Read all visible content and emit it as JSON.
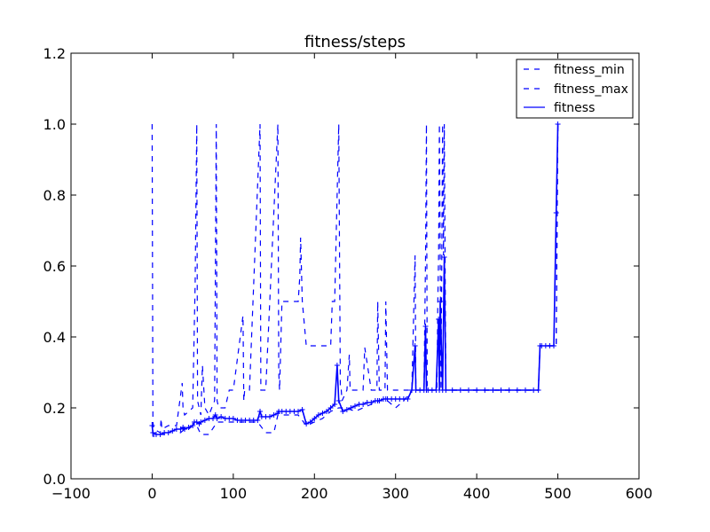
{
  "chart_data": {
    "type": "line",
    "title": "fitness/steps",
    "xlabel": "",
    "ylabel": "",
    "xlim": [
      -100,
      600
    ],
    "ylim": [
      0.0,
      1.2
    ],
    "xticks": [
      -100,
      0,
      100,
      200,
      300,
      400,
      500,
      600
    ],
    "xtick_labels": [
      "−100",
      "0",
      "100",
      "200",
      "300",
      "400",
      "500",
      "600"
    ],
    "yticks": [
      0.0,
      0.2,
      0.4,
      0.6,
      0.8,
      1.0,
      1.2
    ],
    "ytick_labels": [
      "0.0",
      "0.2",
      "0.4",
      "0.6",
      "0.8",
      "1.0",
      "1.2"
    ],
    "grid": false,
    "legend_position": "top-right",
    "color": "#0000ff",
    "series": [
      {
        "name": "fitness_min",
        "style": "dashed",
        "x": [
          0,
          1,
          5,
          10,
          15,
          20,
          25,
          30,
          35,
          40,
          45,
          50,
          55,
          60,
          65,
          70,
          80,
          90,
          100,
          110,
          120,
          130,
          140,
          150,
          155,
          160,
          170,
          180,
          190,
          200,
          210,
          220,
          230,
          240,
          250,
          260,
          270,
          280,
          290,
          300,
          310,
          320,
          330,
          340,
          350,
          355,
          360,
          380,
          400,
          420,
          440,
          460,
          476,
          478,
          490,
          498,
          500
        ],
        "y": [
          0.16,
          0.12,
          0.12,
          0.125,
          0.125,
          0.13,
          0.135,
          0.135,
          0.13,
          0.14,
          0.14,
          0.15,
          0.15,
          0.125,
          0.125,
          0.125,
          0.16,
          0.16,
          0.16,
          0.16,
          0.16,
          0.16,
          0.13,
          0.13,
          0.18,
          0.18,
          0.18,
          0.18,
          0.15,
          0.16,
          0.17,
          0.19,
          0.2,
          0.2,
          0.19,
          0.2,
          0.21,
          0.22,
          0.22,
          0.2,
          0.22,
          0.25,
          0.25,
          0.25,
          0.25,
          0.25,
          0.25,
          0.25,
          0.25,
          0.25,
          0.25,
          0.25,
          0.25,
          0.375,
          0.375,
          0.375,
          1.0
        ]
      },
      {
        "name": "fitness_max",
        "style": "dashed",
        "x": [
          0,
          1,
          2,
          10,
          11,
          12,
          20,
          30,
          37,
          38,
          40,
          50,
          53,
          55,
          56,
          60,
          62,
          65,
          70,
          77,
          79,
          80,
          82,
          90,
          95,
          100,
          112,
          113,
          114,
          120,
          133,
          134,
          135,
          140,
          155,
          156,
          157,
          160,
          170,
          180,
          182,
          183,
          185,
          190,
          191,
          192,
          195,
          220,
          222,
          225,
          230,
          232,
          233,
          234,
          240,
          243,
          244,
          250,
          260,
          262,
          270,
          277,
          278,
          280,
          287,
          288,
          290,
          300,
          310,
          320,
          324,
          325,
          326,
          335,
          337,
          338,
          339,
          345,
          351,
          352,
          353,
          354,
          356,
          358,
          359,
          360,
          362,
          380,
          400,
          420,
          440,
          460,
          476,
          478,
          490,
          498,
          500
        ],
        "y": [
          1.0,
          0.16,
          0.14,
          0.13,
          0.17,
          0.14,
          0.15,
          0.15,
          0.27,
          0.2,
          0.18,
          0.2,
          0.55,
          1.0,
          0.22,
          0.18,
          0.32,
          0.2,
          0.18,
          0.22,
          1.0,
          0.22,
          0.2,
          0.2,
          0.25,
          0.25,
          0.46,
          0.22,
          0.25,
          0.25,
          1.0,
          0.25,
          0.25,
          0.25,
          1.0,
          0.3,
          0.25,
          0.5,
          0.5,
          0.5,
          0.57,
          0.68,
          0.5,
          0.375,
          0.375,
          0.375,
          0.375,
          0.375,
          0.5,
          0.5,
          1.0,
          0.25,
          0.25,
          0.22,
          0.25,
          0.35,
          0.25,
          0.25,
          0.25,
          0.37,
          0.25,
          0.25,
          0.5,
          0.25,
          0.25,
          0.5,
          0.25,
          0.25,
          0.25,
          0.25,
          0.63,
          0.25,
          0.25,
          0.25,
          0.625,
          1.0,
          0.25,
          0.25,
          0.25,
          0.5,
          0.63,
          1.0,
          0.25,
          1.0,
          0.63,
          1.0,
          0.25,
          0.25,
          0.25,
          0.25,
          0.25,
          0.25,
          0.25,
          0.375,
          0.375,
          0.375,
          1.0
        ]
      },
      {
        "name": "fitness",
        "style": "solid",
        "marker": "+",
        "x": [
          0,
          1,
          5,
          10,
          15,
          20,
          25,
          30,
          35,
          38,
          40,
          45,
          50,
          52,
          55,
          58,
          60,
          65,
          70,
          75,
          78,
          80,
          85,
          90,
          95,
          100,
          105,
          110,
          115,
          120,
          125,
          130,
          133,
          135,
          140,
          145,
          150,
          155,
          156,
          160,
          165,
          170,
          175,
          180,
          185,
          190,
          195,
          200,
          205,
          210,
          215,
          220,
          225,
          228,
          230,
          235,
          240,
          245,
          250,
          255,
          260,
          265,
          270,
          275,
          278,
          280,
          285,
          288,
          290,
          295,
          300,
          305,
          310,
          315,
          320,
          324,
          325,
          330,
          335,
          337,
          338,
          340,
          345,
          350,
          353,
          354,
          355,
          358,
          360,
          362,
          370,
          380,
          390,
          400,
          410,
          420,
          430,
          440,
          450,
          460,
          470,
          476,
          478,
          480,
          485,
          490,
          495,
          498,
          500
        ],
        "y": [
          0.15,
          0.13,
          0.125,
          0.125,
          0.13,
          0.13,
          0.135,
          0.14,
          0.14,
          0.145,
          0.14,
          0.145,
          0.15,
          0.16,
          0.16,
          0.155,
          0.16,
          0.165,
          0.17,
          0.17,
          0.18,
          0.17,
          0.175,
          0.17,
          0.17,
          0.17,
          0.165,
          0.165,
          0.165,
          0.165,
          0.165,
          0.165,
          0.19,
          0.175,
          0.175,
          0.175,
          0.18,
          0.185,
          0.19,
          0.19,
          0.19,
          0.19,
          0.19,
          0.19,
          0.195,
          0.155,
          0.16,
          0.17,
          0.18,
          0.185,
          0.19,
          0.2,
          0.21,
          0.32,
          0.22,
          0.19,
          0.195,
          0.2,
          0.205,
          0.21,
          0.21,
          0.215,
          0.215,
          0.22,
          0.22,
          0.22,
          0.225,
          0.225,
          0.225,
          0.225,
          0.225,
          0.225,
          0.225,
          0.225,
          0.25,
          0.375,
          0.25,
          0.25,
          0.25,
          0.43,
          0.25,
          0.25,
          0.25,
          0.25,
          0.45,
          0.25,
          0.5,
          0.25,
          0.625,
          0.25,
          0.25,
          0.25,
          0.25,
          0.25,
          0.25,
          0.25,
          0.25,
          0.25,
          0.25,
          0.25,
          0.25,
          0.25,
          0.375,
          0.375,
          0.375,
          0.375,
          0.375,
          0.75,
          1.0
        ]
      }
    ]
  }
}
